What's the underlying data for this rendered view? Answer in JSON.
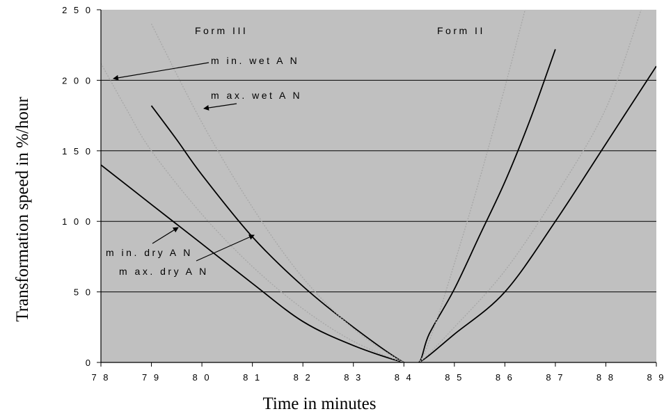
{
  "chart_data": {
    "type": "line",
    "title": "",
    "xlabel": "Time in minutes",
    "ylabel": "Transformation speed in %/hour",
    "xlim": [
      78,
      89
    ],
    "ylim": [
      0,
      250
    ],
    "x_ticks": [
      "7 8",
      "7 9",
      "8 0",
      "8 1",
      "8 2",
      "8 3",
      "8 4",
      "8 5",
      "8 6",
      "8 7",
      "8 8",
      "8 9"
    ],
    "y_ticks": [
      "0",
      "5 0",
      "1 0 0",
      "1 5 0",
      "2 0 0",
      "2 5 0"
    ],
    "y_tick_values": [
      0,
      50,
      100,
      150,
      200,
      250
    ],
    "grid": "horizontal",
    "background": "#c0c0c0",
    "series": [
      {
        "style": "solid",
        "color": "#000000",
        "points": [
          [
            78,
            140
          ],
          [
            79,
            112
          ],
          [
            80,
            84
          ],
          [
            81,
            56
          ],
          [
            82,
            29
          ],
          [
            83,
            12
          ],
          [
            84,
            0
          ],
          [
            84.3,
            0
          ],
          [
            85,
            20
          ],
          [
            86,
            50
          ],
          [
            87,
            100
          ],
          [
            88,
            155
          ],
          [
            89,
            210
          ]
        ]
      },
      {
        "style": "solid",
        "color": "#000000",
        "points": [
          [
            79,
            182
          ],
          [
            79.5,
            158
          ],
          [
            80,
            133
          ],
          [
            81,
            89
          ],
          [
            82,
            54
          ],
          [
            83,
            25
          ],
          [
            84,
            0
          ],
          [
            84.3,
            0
          ],
          [
            84.5,
            20
          ],
          [
            85,
            52
          ],
          [
            85.5,
            90
          ],
          [
            86,
            128
          ],
          [
            86.5,
            172
          ],
          [
            87,
            222
          ]
        ]
      },
      {
        "style": "dotted",
        "color": "#a8a8a8",
        "points": [
          [
            78,
            212
          ],
          [
            78.5,
            180
          ],
          [
            79,
            150
          ],
          [
            80,
            105
          ],
          [
            81,
            68
          ],
          [
            82,
            38
          ],
          [
            83,
            15
          ],
          [
            84,
            0
          ],
          [
            84.3,
            0
          ],
          [
            85,
            25
          ],
          [
            86,
            65
          ],
          [
            87,
            118
          ],
          [
            88,
            180
          ],
          [
            88.7,
            250
          ]
        ]
      },
      {
        "style": "dotted",
        "color": "#a8a8a8",
        "points": [
          [
            79,
            240
          ],
          [
            80,
            170
          ],
          [
            81,
            110
          ],
          [
            82,
            60
          ],
          [
            83,
            24
          ],
          [
            84,
            0
          ],
          [
            84.3,
            0
          ],
          [
            84.6,
            25
          ],
          [
            85,
            70
          ],
          [
            85.5,
            130
          ],
          [
            86,
            195
          ],
          [
            86.4,
            250
          ]
        ]
      }
    ],
    "annotations": [
      {
        "text": "Form  III"
      },
      {
        "text": "Form  II"
      },
      {
        "text": "m in.  wet A N"
      },
      {
        "text": "m ax.  wet A N"
      },
      {
        "text": "m in.  dry A N"
      },
      {
        "text": "m ax.  dry A N"
      }
    ]
  }
}
